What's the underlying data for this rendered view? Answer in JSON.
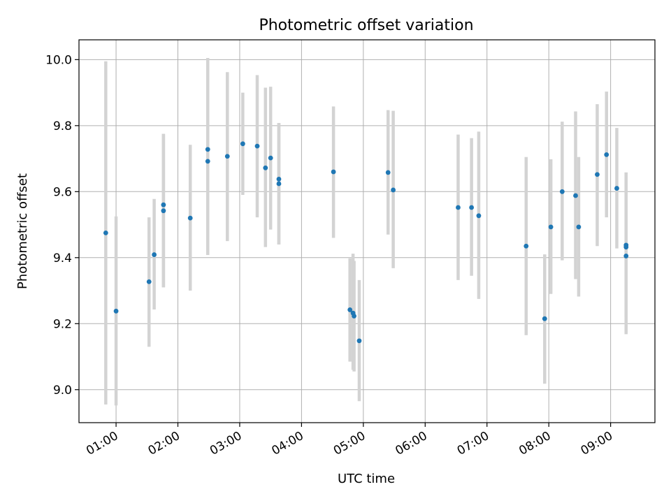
{
  "chart_data": {
    "type": "scatter",
    "title": "Photometric offset variation",
    "xlabel": "UTC time",
    "ylabel": "Photometric offset",
    "xlim": [
      "00:24",
      "09:43"
    ],
    "ylim": [
      8.9,
      10.06
    ],
    "xticks": [
      "01:00",
      "02:00",
      "03:00",
      "04:00",
      "05:00",
      "06:00",
      "07:00",
      "08:00",
      "09:00"
    ],
    "yticks": [
      "9.0",
      "9.2",
      "9.4",
      "9.6",
      "9.8",
      "10.0"
    ],
    "grid": true,
    "colors": {
      "marker": "#1f77b4",
      "errorbar": "#d3d3d3",
      "grid": "#b0b0b0"
    },
    "points": [
      {
        "x": "00:50",
        "y": 9.475,
        "yerr_low": 8.955,
        "yerr_high": 9.995
      },
      {
        "x": "01:00",
        "y": 9.238,
        "yerr_low": 8.952,
        "yerr_high": 9.525
      },
      {
        "x": "01:32",
        "y": 9.327,
        "yerr_low": 9.13,
        "yerr_high": 9.522
      },
      {
        "x": "01:37",
        "y": 9.409,
        "yerr_low": 9.243,
        "yerr_high": 9.578
      },
      {
        "x": "01:46",
        "y": 9.56,
        "yerr_low": 9.31,
        "yerr_high": 9.775
      },
      {
        "x": "01:46",
        "y": 9.542,
        "yerr_low": 9.31,
        "yerr_high": 9.775
      },
      {
        "x": "02:12",
        "y": 9.52,
        "yerr_low": 9.3,
        "yerr_high": 9.742
      },
      {
        "x": "02:29",
        "y": 9.728,
        "yerr_low": 9.45,
        "yerr_high": 10.005
      },
      {
        "x": "02:29",
        "y": 9.692,
        "yerr_low": 9.408,
        "yerr_high": 9.975
      },
      {
        "x": "02:48",
        "y": 9.707,
        "yerr_low": 9.45,
        "yerr_high": 9.962
      },
      {
        "x": "03:03",
        "y": 9.745,
        "yerr_low": 9.59,
        "yerr_high": 9.9
      },
      {
        "x": "03:17",
        "y": 9.738,
        "yerr_low": 9.522,
        "yerr_high": 9.953
      },
      {
        "x": "03:25",
        "y": 9.672,
        "yerr_low": 9.432,
        "yerr_high": 9.915
      },
      {
        "x": "03:30",
        "y": 9.702,
        "yerr_low": 9.485,
        "yerr_high": 9.918
      },
      {
        "x": "03:38",
        "y": 9.638,
        "yerr_low": 9.44,
        "yerr_high": 9.808
      },
      {
        "x": "03:38",
        "y": 9.624,
        "yerr_low": 9.44,
        "yerr_high": 9.808
      },
      {
        "x": "04:31",
        "y": 9.66,
        "yerr_low": 9.46,
        "yerr_high": 9.858
      },
      {
        "x": "04:47",
        "y": 9.242,
        "yerr_low": 9.085,
        "yerr_high": 9.398
      },
      {
        "x": "04:50",
        "y": 9.232,
        "yerr_low": 9.06,
        "yerr_high": 9.412
      },
      {
        "x": "04:51",
        "y": 9.223,
        "yerr_low": 9.055,
        "yerr_high": 9.39
      },
      {
        "x": "04:56",
        "y": 9.148,
        "yerr_low": 8.965,
        "yerr_high": 9.332
      },
      {
        "x": "05:24",
        "y": 9.658,
        "yerr_low": 9.47,
        "yerr_high": 9.847
      },
      {
        "x": "05:29",
        "y": 9.605,
        "yerr_low": 9.368,
        "yerr_high": 9.845
      },
      {
        "x": "06:32",
        "y": 9.552,
        "yerr_low": 9.332,
        "yerr_high": 9.773
      },
      {
        "x": "06:45",
        "y": 9.552,
        "yerr_low": 9.345,
        "yerr_high": 9.762
      },
      {
        "x": "06:52",
        "y": 9.527,
        "yerr_low": 9.275,
        "yerr_high": 9.782
      },
      {
        "x": "07:38",
        "y": 9.435,
        "yerr_low": 9.165,
        "yerr_high": 9.705
      },
      {
        "x": "07:56",
        "y": 9.215,
        "yerr_low": 9.018,
        "yerr_high": 9.41
      },
      {
        "x": "08:02",
        "y": 9.493,
        "yerr_low": 9.29,
        "yerr_high": 9.698
      },
      {
        "x": "08:13",
        "y": 9.6,
        "yerr_low": 9.392,
        "yerr_high": 9.812
      },
      {
        "x": "08:26",
        "y": 9.588,
        "yerr_low": 9.335,
        "yerr_high": 9.843
      },
      {
        "x": "08:29",
        "y": 9.493,
        "yerr_low": 9.282,
        "yerr_high": 9.705
      },
      {
        "x": "08:47",
        "y": 9.652,
        "yerr_low": 9.435,
        "yerr_high": 9.865
      },
      {
        "x": "08:56",
        "y": 9.712,
        "yerr_low": 9.522,
        "yerr_high": 9.903
      },
      {
        "x": "09:06",
        "y": 9.61,
        "yerr_low": 9.428,
        "yerr_high": 9.793
      },
      {
        "x": "09:15",
        "y": 9.438,
        "yerr_low": 9.22,
        "yerr_high": 9.658
      },
      {
        "x": "09:15",
        "y": 9.432,
        "yerr_low": 9.22,
        "yerr_high": 9.658
      },
      {
        "x": "09:15",
        "y": 9.405,
        "yerr_low": 9.168,
        "yerr_high": 9.645
      }
    ]
  }
}
